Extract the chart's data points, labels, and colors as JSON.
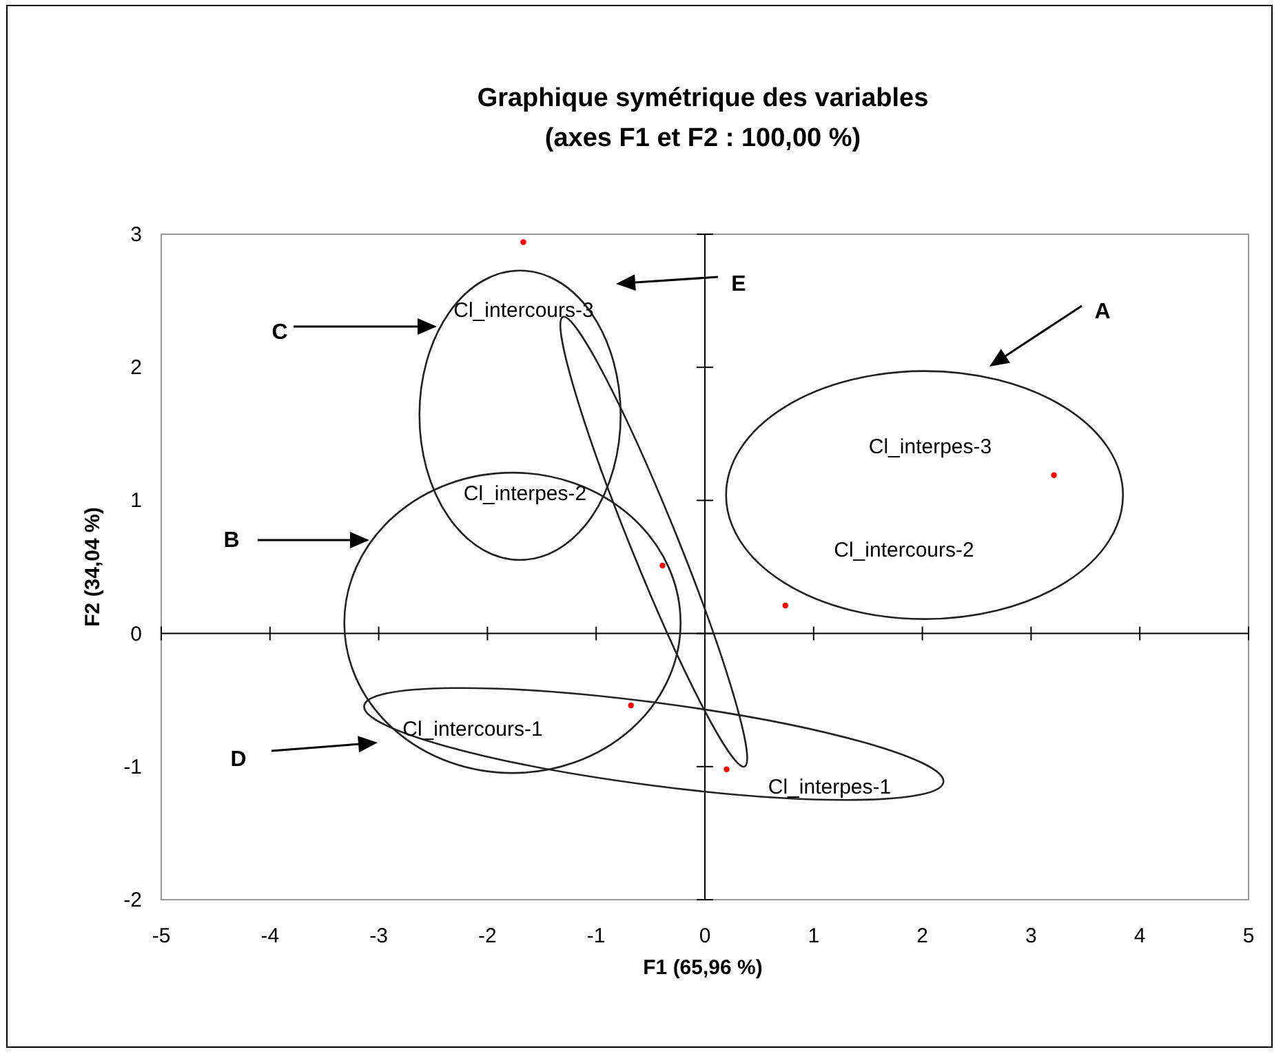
{
  "chart_data": {
    "type": "scatter",
    "title": "Graphique symétrique des variables",
    "subtitle": "(axes F1 et F2 : 100,00 %)",
    "xlabel": "F1 (65,96 %)",
    "ylabel": "F2 (34,04 %)",
    "x": [
      -1.67,
      3.21,
      -0.39,
      0.74,
      -0.68,
      0.2
    ],
    "values": [
      2.94,
      1.19,
      0.51,
      0.21,
      -0.54,
      -1.02
    ],
    "color": "#ff0000",
    "marker": "circle",
    "xlim": [
      -5,
      5
    ],
    "xticks": [
      -5,
      -4,
      -3,
      -2,
      -1,
      0,
      1,
      2,
      3,
      4,
      5
    ],
    "ylim": [
      -2,
      3
    ],
    "yticks": [
      -2,
      -1,
      0,
      1,
      2,
      3
    ],
    "annotations": [
      "Cl_intercours-3",
      "Cl_interpes-2",
      "Cl_interpes-3",
      "Cl_intercours-2",
      "Cl_intercours-1",
      "Cl_interpes-1",
      "A",
      "B",
      "C",
      "D",
      "E"
    ]
  }
}
